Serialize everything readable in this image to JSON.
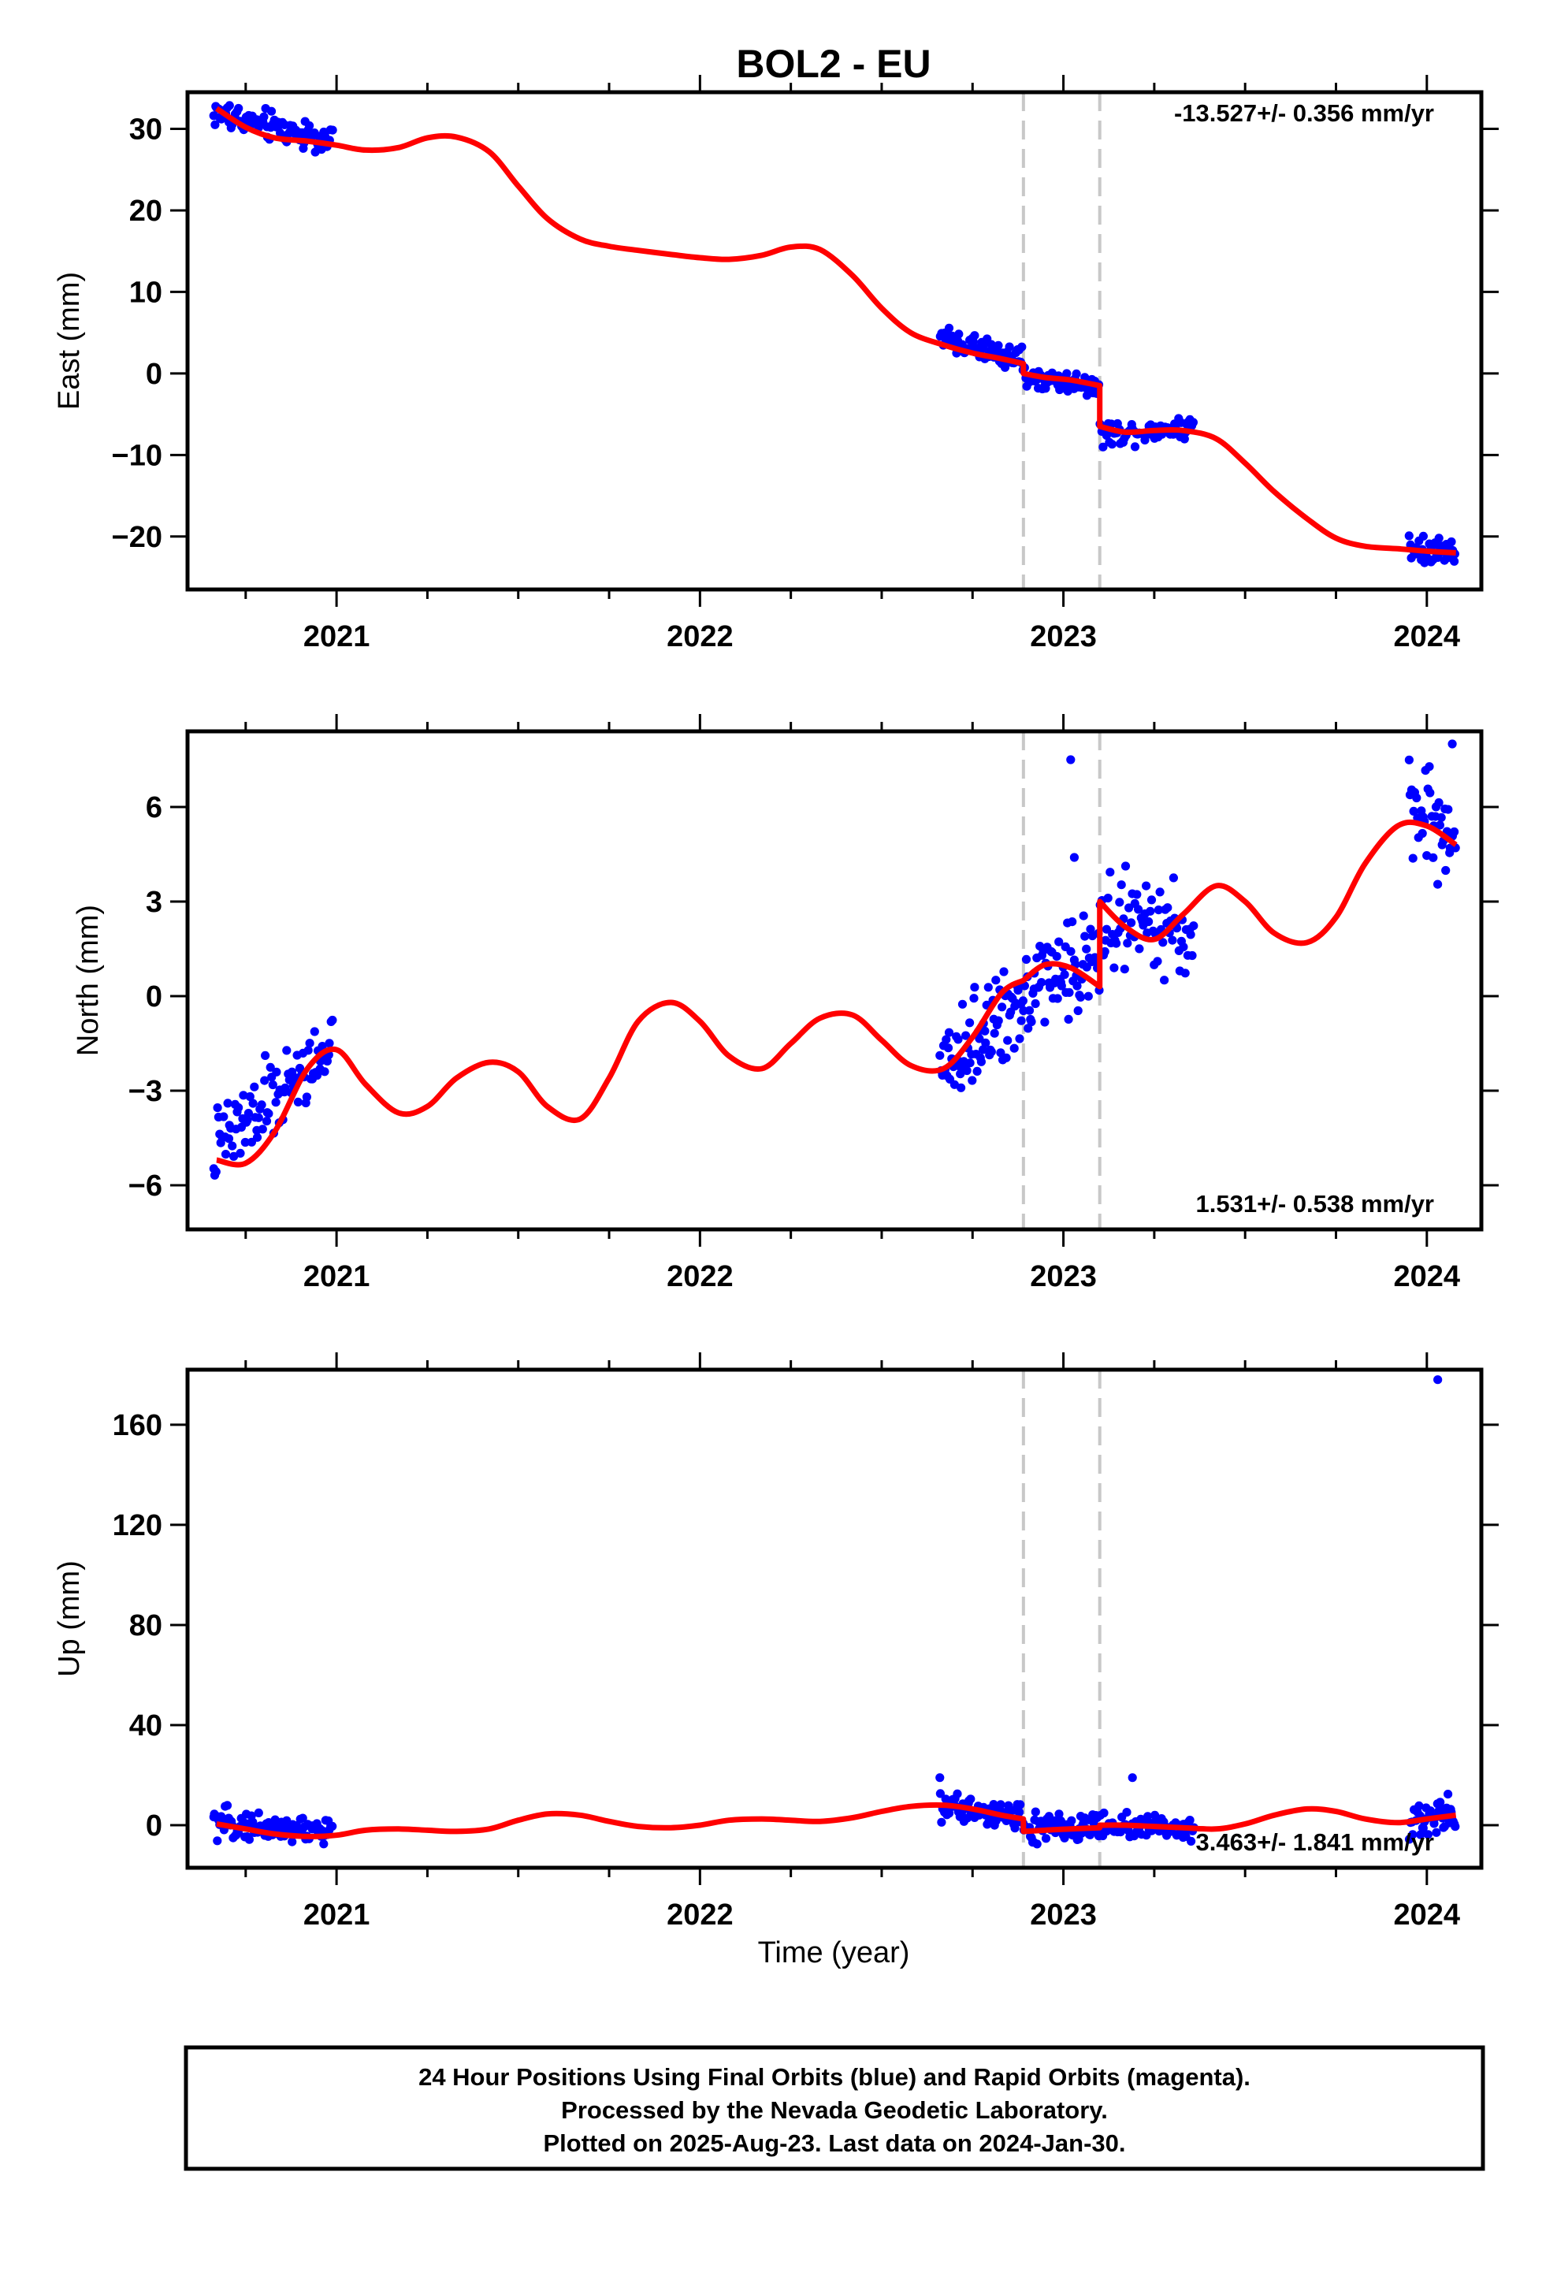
{
  "title": "BOL2 - EU",
  "xlabel": "Time (year)",
  "caption": [
    "24 Hour Positions Using Final Orbits (blue) and Rapid Orbits (magenta).",
    "Processed by the Nevada Geodetic Laboratory.",
    "Plotted on 2025-Aug-23. Last data on 2024-Jan-30."
  ],
  "colors": {
    "observations": "#0000ff",
    "model": "#ff0000",
    "event_lines": "#c8c8c8",
    "frame": "#000000"
  },
  "chart_data": [
    {
      "type": "scatter",
      "component": "East",
      "ylabel": "East (mm)",
      "rate_label": "-13.527+/- 0.356 mm/yr",
      "rate_position": "top-right",
      "xlim": [
        2020.59,
        2024.15
      ],
      "ylim": [
        -26.5,
        34.5
      ],
      "x_ticks": [
        2021,
        2022,
        2023,
        2024
      ],
      "y_ticks": [
        -20,
        -10,
        0,
        10,
        20,
        30
      ],
      "event_lines": [
        2022.89,
        2023.1
      ],
      "model": {
        "name": "model fit",
        "x": [
          2020.67,
          2020.75,
          2020.83,
          2020.92,
          2021.0,
          2021.08,
          2021.17,
          2021.25,
          2021.33,
          2021.42,
          2021.5,
          2021.58,
          2021.67,
          2021.75,
          2021.83,
          2021.92,
          2022.0,
          2022.08,
          2022.17,
          2022.25,
          2022.33,
          2022.42,
          2022.5,
          2022.58,
          2022.67,
          2022.75,
          2022.83,
          2022.89,
          2022.89,
          2022.95,
          2023.02,
          2023.1,
          2023.1,
          2023.17,
          2023.25,
          2023.33,
          2023.42,
          2023.5,
          2023.58,
          2023.67,
          2023.75,
          2023.83,
          2023.92,
          2024.0,
          2024.08
        ],
        "y": [
          32.5,
          30.2,
          28.9,
          28.5,
          28.0,
          27.4,
          27.7,
          28.9,
          29.0,
          27.2,
          23.0,
          19.0,
          16.5,
          15.6,
          15.1,
          14.6,
          14.2,
          14.0,
          14.5,
          15.5,
          15.2,
          12.0,
          8.0,
          5.0,
          3.5,
          2.5,
          1.8,
          1.2,
          0.0,
          -0.5,
          -0.8,
          -1.5,
          -6.5,
          -7.2,
          -7.0,
          -7.0,
          -8.0,
          -11.0,
          -14.5,
          -17.8,
          -20.2,
          -21.2,
          -21.5,
          -21.8,
          -22.0
        ]
      },
      "observations": [
        {
          "x_range": [
            2020.66,
            2020.99
          ],
          "y_trend": [
            32.0,
            28.5
          ],
          "scatter": 1.3,
          "count": 95
        },
        {
          "x_range": [
            2022.66,
            2022.89
          ],
          "y_trend": [
            4.5,
            1.5
          ],
          "scatter": 1.0,
          "count": 75
        },
        {
          "x_range": [
            2022.89,
            2023.1
          ],
          "y_trend": [
            -0.5,
            -1.5
          ],
          "scatter": 1.0,
          "count": 70
        },
        {
          "x_range": [
            2023.1,
            2023.36
          ],
          "y_trend": [
            -7.5,
            -6.5
          ],
          "scatter": 1.0,
          "count": 70
        },
        {
          "x_range": [
            2023.95,
            2024.08
          ],
          "y_trend": [
            -21.0,
            -22.0
          ],
          "scatter": 1.5,
          "count": 40
        }
      ]
    },
    {
      "type": "scatter",
      "component": "North",
      "ylabel": "North (mm)",
      "rate_label": "1.531+/- 0.538 mm/yr",
      "rate_position": "bottom-right",
      "xlim": [
        2020.59,
        2024.15
      ],
      "ylim": [
        -7.4,
        8.4
      ],
      "x_ticks": [
        2021,
        2022,
        2023,
        2024
      ],
      "y_ticks": [
        -6,
        -3,
        0,
        3,
        6
      ],
      "event_lines": [
        2022.89,
        2023.1
      ],
      "model": {
        "name": "model fit",
        "x": [
          2020.67,
          2020.75,
          2020.83,
          2020.92,
          2021.0,
          2021.08,
          2021.17,
          2021.25,
          2021.33,
          2021.42,
          2021.5,
          2021.58,
          2021.67,
          2021.75,
          2021.83,
          2021.92,
          2022.0,
          2022.08,
          2022.17,
          2022.25,
          2022.33,
          2022.42,
          2022.5,
          2022.58,
          2022.67,
          2022.75,
          2022.83,
          2022.89,
          2022.89,
          2022.95,
          2023.02,
          2023.1,
          2023.1,
          2023.17,
          2023.25,
          2023.33,
          2023.42,
          2023.5,
          2023.58,
          2023.67,
          2023.75,
          2023.83,
          2023.92,
          2024.0,
          2024.08
        ],
        "y": [
          -5.2,
          -5.3,
          -4.3,
          -2.3,
          -1.7,
          -2.8,
          -3.7,
          -3.5,
          -2.6,
          -2.1,
          -2.4,
          -3.5,
          -3.9,
          -2.6,
          -0.8,
          -0.2,
          -0.8,
          -1.9,
          -2.3,
          -1.5,
          -0.7,
          -0.6,
          -1.4,
          -2.2,
          -2.3,
          -1.3,
          0.1,
          0.5,
          0.5,
          1.0,
          0.9,
          0.3,
          3.0,
          2.2,
          1.8,
          2.6,
          3.5,
          3.0,
          2.0,
          1.7,
          2.5,
          4.2,
          5.4,
          5.4,
          4.8
        ]
      },
      "observations": [
        {
          "x_range": [
            2020.66,
            2020.99
          ],
          "y_trend": [
            -5.0,
            -1.5
          ],
          "scatter": 0.9,
          "count": 95
        },
        {
          "x_range": [
            2022.66,
            2022.89
          ],
          "y_trend": [
            -2.5,
            0.0
          ],
          "scatter": 1.0,
          "count": 75
        },
        {
          "x_range": [
            2022.89,
            2023.1
          ],
          "y_trend": [
            0.3,
            1.2
          ],
          "scatter": 1.0,
          "count": 70
        },
        {
          "x_range": [
            2023.1,
            2023.36
          ],
          "y_trend": [
            2.5,
            2.0
          ],
          "scatter": 0.9,
          "count": 70
        },
        {
          "x_range": [
            2023.95,
            2024.08
          ],
          "y_trend": [
            5.8,
            5.2
          ],
          "scatter": 1.0,
          "count": 40
        }
      ],
      "outliers": [
        {
          "x": 2023.02,
          "y": 7.5
        },
        {
          "x": 2023.03,
          "y": 4.4
        },
        {
          "x": 2024.07,
          "y": 8.0
        }
      ]
    },
    {
      "type": "scatter",
      "component": "Up",
      "ylabel": "Up (mm)",
      "rate_label": "3.463+/- 1.841 mm/yr",
      "rate_position": "bottom-right",
      "xlim": [
        2020.59,
        2024.15
      ],
      "ylim": [
        -17,
        182
      ],
      "x_ticks": [
        2021,
        2022,
        2023,
        2024
      ],
      "y_ticks": [
        0,
        40,
        80,
        120,
        160
      ],
      "event_lines": [
        2022.89,
        2023.1
      ],
      "model": {
        "name": "model fit",
        "x": [
          2020.67,
          2020.75,
          2020.83,
          2020.92,
          2021.0,
          2021.08,
          2021.17,
          2021.25,
          2021.33,
          2021.42,
          2021.5,
          2021.58,
          2021.67,
          2021.75,
          2021.83,
          2021.92,
          2022.0,
          2022.08,
          2022.17,
          2022.25,
          2022.33,
          2022.42,
          2022.5,
          2022.58,
          2022.67,
          2022.75,
          2022.83,
          2022.89,
          2022.89,
          2022.95,
          2023.02,
          2023.1,
          2023.1,
          2023.17,
          2023.25,
          2023.33,
          2023.42,
          2023.5,
          2023.58,
          2023.67,
          2023.75,
          2023.83,
          2023.92,
          2024.0,
          2024.08
        ],
        "y": [
          0.5,
          -1.5,
          -3.5,
          -4.5,
          -4.0,
          -2.0,
          -1.5,
          -2.0,
          -2.5,
          -1.5,
          2.0,
          4.5,
          4.0,
          1.5,
          -0.5,
          -1.0,
          0.0,
          2.0,
          2.5,
          2.0,
          1.5,
          3.0,
          5.5,
          7.5,
          8.0,
          6.5,
          4.0,
          2.5,
          -2.5,
          -2.0,
          -1.5,
          -1.0,
          0.0,
          0.0,
          -0.5,
          -1.0,
          -1.5,
          0.5,
          4.0,
          6.5,
          5.5,
          2.5,
          1.0,
          2.5,
          4.0
        ]
      },
      "observations": [
        {
          "x_range": [
            2020.66,
            2020.99
          ],
          "y_trend": [
            1.0,
            -3.0
          ],
          "scatter": 4.0,
          "count": 95
        },
        {
          "x_range": [
            2022.66,
            2022.89
          ],
          "y_trend": [
            8.0,
            3.0
          ],
          "scatter": 4.0,
          "count": 75
        },
        {
          "x_range": [
            2022.89,
            2023.1
          ],
          "y_trend": [
            -2.0,
            -1.0
          ],
          "scatter": 4.5,
          "count": 70
        },
        {
          "x_range": [
            2023.1,
            2023.36
          ],
          "y_trend": [
            0.0,
            -1.0
          ],
          "scatter": 4.0,
          "count": 70
        },
        {
          "x_range": [
            2023.95,
            2024.08
          ],
          "y_trend": [
            2.0,
            4.0
          ],
          "scatter": 5.0,
          "count": 40
        }
      ],
      "outliers": [
        {
          "x": 2024.03,
          "y": 178
        },
        {
          "x": 2022.66,
          "y": 19
        },
        {
          "x": 2023.19,
          "y": 19
        }
      ]
    }
  ]
}
